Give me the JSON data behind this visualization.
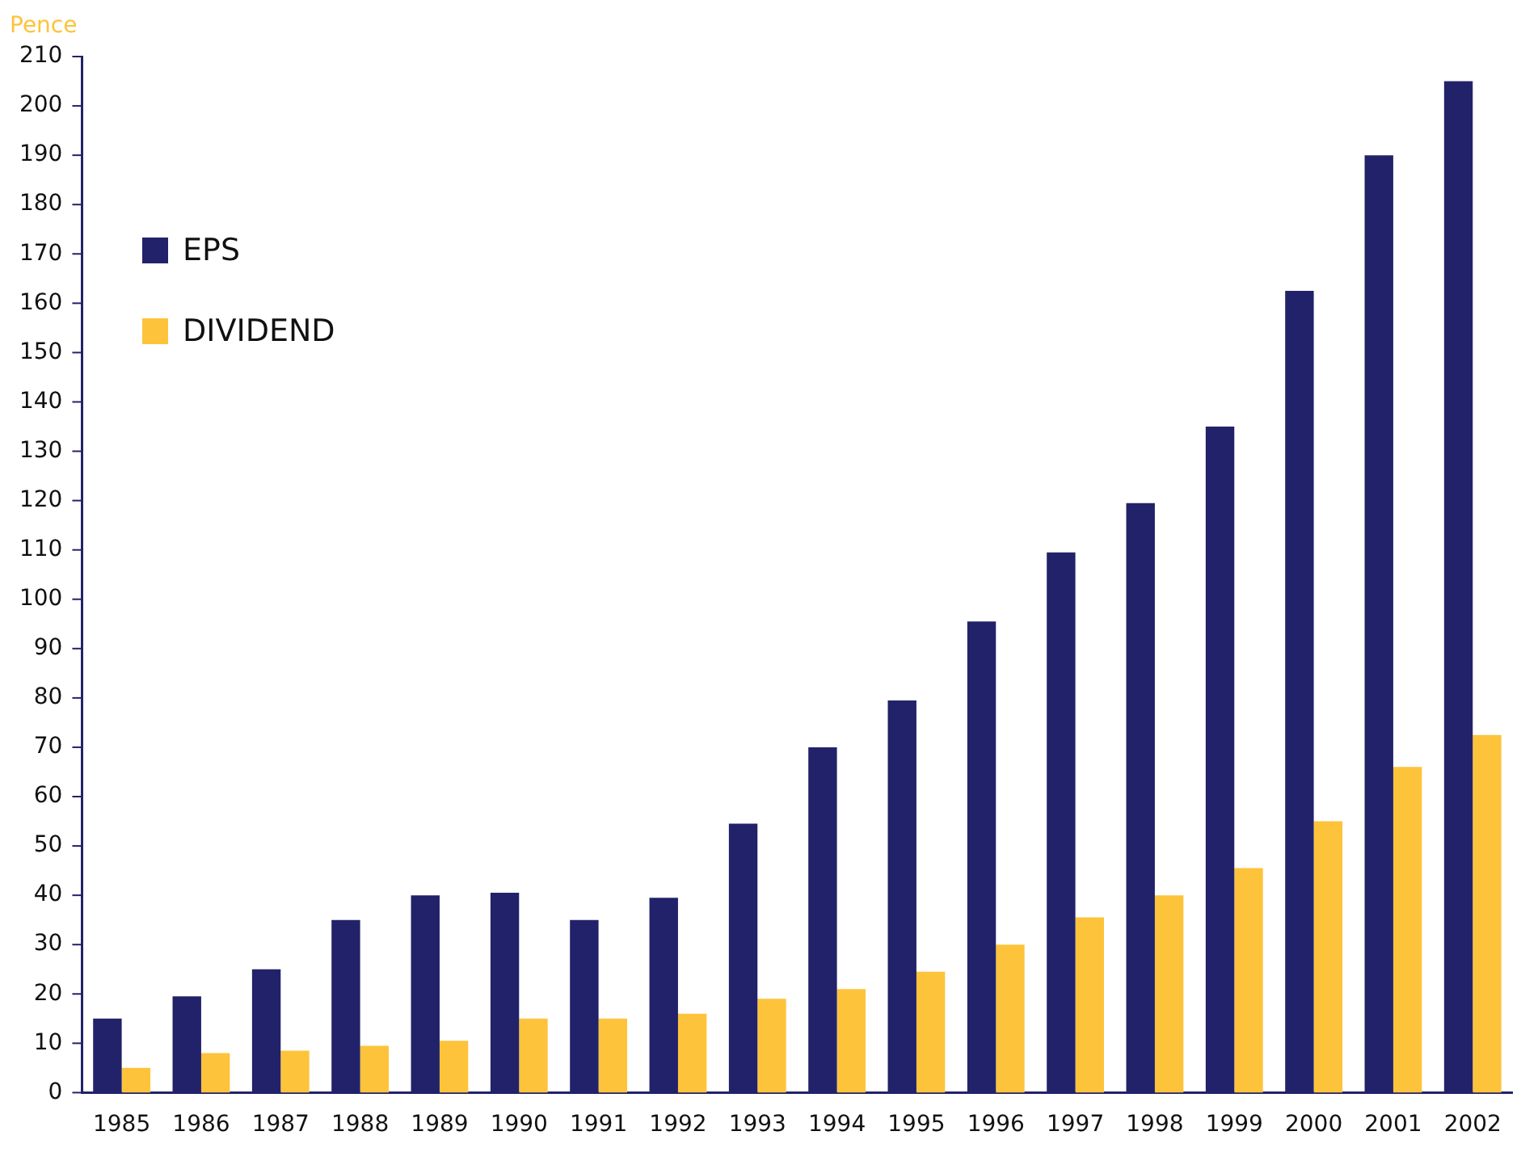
{
  "chart_data": {
    "type": "bar",
    "ylabel": "Pence",
    "categories": [
      "1985",
      "1986",
      "1987",
      "1988",
      "1989",
      "1990",
      "1991",
      "1992",
      "1993",
      "1994",
      "1995",
      "1996",
      "1997",
      "1998",
      "1999",
      "2000",
      "2001",
      "2002"
    ],
    "series": [
      {
        "name": "EPS",
        "color": "#22226a",
        "values": [
          15,
          19.5,
          25,
          35,
          40,
          40.5,
          35,
          39.5,
          54.5,
          70,
          79.5,
          95.5,
          109.5,
          119.5,
          135,
          162.5,
          190,
          205
        ]
      },
      {
        "name": "DIVIDEND",
        "color": "#fdc33a",
        "values": [
          5,
          8,
          8.5,
          9.5,
          10.5,
          15,
          15,
          16,
          19,
          21,
          24.5,
          30,
          35.5,
          40,
          45.5,
          55,
          66,
          72.5
        ]
      }
    ],
    "ylim": [
      0,
      210
    ],
    "yticks": [
      0,
      10,
      20,
      30,
      40,
      50,
      60,
      70,
      80,
      90,
      100,
      110,
      120,
      130,
      140,
      150,
      160,
      170,
      180,
      190,
      200,
      210
    ],
    "grid": false,
    "legend": "top left"
  }
}
